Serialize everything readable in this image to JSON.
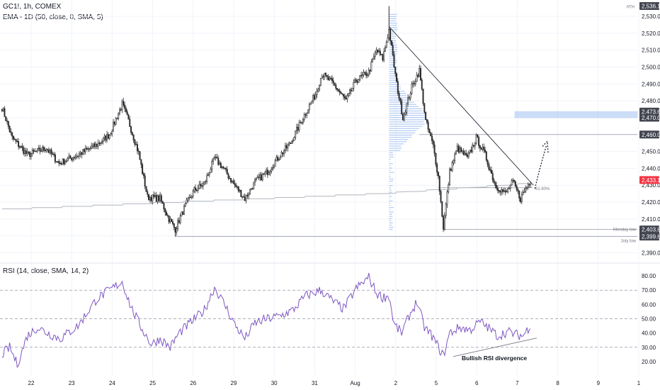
{
  "header": {
    "symbol_line": "GC1!, 1h, COMEX",
    "ema_line": "EMA - 1D (50, close, 0, SMA, 5)",
    "rsi_line": "RSI (14, close, SMA, 14, 2)"
  },
  "colors": {
    "up": "#2b2b2b",
    "down": "#2b2b2b",
    "rsi": "#7e57c2",
    "ema": "#b2b5be",
    "grid": "#f0f3fa",
    "volume_profile": "#90b4ee",
    "zone": "#90b4ee",
    "badge": "#434651",
    "price_badge": "#f23645"
  },
  "chart_data": [
    {
      "type": "candlestick",
      "name": "price",
      "ylim": [
        2386,
        2538
      ],
      "y_ticks": [
        "2,390.0",
        "2,400.0",
        "2,410.0",
        "2,420.0",
        "2,430.0",
        "2,440.0",
        "2,450.0",
        "2,460.0",
        "2,470.0",
        "2,480.0",
        "2,490.0",
        "2,500.0",
        "2,510.0",
        "2,520.0",
        "2,530.0"
      ],
      "y_tick_values": [
        2390,
        2400,
        2410,
        2420,
        2430,
        2440,
        2450,
        2460,
        2470,
        2480,
        2490,
        2500,
        2510,
        2520,
        2530
      ],
      "x_labels": [
        "22",
        "23",
        "24",
        "25",
        "26",
        "29",
        "30",
        "31",
        "Aug",
        "2",
        "5",
        "6",
        "7",
        "8",
        "9",
        "1"
      ],
      "anchors": [
        {
          "i": 0,
          "p": 2476
        },
        {
          "i": 8,
          "p": 2458
        },
        {
          "i": 20,
          "p": 2448
        },
        {
          "i": 35,
          "p": 2452
        },
        {
          "i": 45,
          "p": 2443
        },
        {
          "i": 60,
          "p": 2448
        },
        {
          "i": 75,
          "p": 2454
        },
        {
          "i": 85,
          "p": 2460
        },
        {
          "i": 95,
          "p": 2478
        },
        {
          "i": 100,
          "p": 2468
        },
        {
          "i": 108,
          "p": 2449
        },
        {
          "i": 115,
          "p": 2423
        },
        {
          "i": 125,
          "p": 2422
        },
        {
          "i": 132,
          "p": 2410
        },
        {
          "i": 137,
          "p": 2404
        },
        {
          "i": 145,
          "p": 2418
        },
        {
          "i": 152,
          "p": 2427
        },
        {
          "i": 160,
          "p": 2431
        },
        {
          "i": 168,
          "p": 2446
        },
        {
          "i": 175,
          "p": 2440
        },
        {
          "i": 182,
          "p": 2432
        },
        {
          "i": 192,
          "p": 2422
        },
        {
          "i": 200,
          "p": 2432
        },
        {
          "i": 210,
          "p": 2438
        },
        {
          "i": 218,
          "p": 2446
        },
        {
          "i": 228,
          "p": 2455
        },
        {
          "i": 238,
          "p": 2470
        },
        {
          "i": 248,
          "p": 2484
        },
        {
          "i": 253,
          "p": 2496
        },
        {
          "i": 262,
          "p": 2490
        },
        {
          "i": 272,
          "p": 2480
        },
        {
          "i": 280,
          "p": 2492
        },
        {
          "i": 290,
          "p": 2497
        },
        {
          "i": 296,
          "p": 2510
        },
        {
          "i": 301,
          "p": 2505
        },
        {
          "i": 306,
          "p": 2522
        },
        {
          "i": 312,
          "p": 2490
        },
        {
          "i": 317,
          "p": 2470
        },
        {
          "i": 324,
          "p": 2488
        },
        {
          "i": 330,
          "p": 2498
        },
        {
          "i": 335,
          "p": 2468
        },
        {
          "i": 341,
          "p": 2453
        },
        {
          "i": 345,
          "p": 2435
        },
        {
          "i": 349,
          "p": 2405
        },
        {
          "i": 354,
          "p": 2438
        },
        {
          "i": 360,
          "p": 2452
        },
        {
          "i": 368,
          "p": 2446
        },
        {
          "i": 375,
          "p": 2458
        },
        {
          "i": 382,
          "p": 2448
        },
        {
          "i": 390,
          "p": 2430
        },
        {
          "i": 398,
          "p": 2425
        },
        {
          "i": 404,
          "p": 2432
        },
        {
          "i": 410,
          "p": 2422
        },
        {
          "i": 414,
          "p": 2428
        },
        {
          "i": 418,
          "p": 2433.1
        }
      ],
      "last_price": "2,433.1",
      "price_levels": [
        {
          "label": "2,536.1",
          "value": 2536.1,
          "note": "ATH"
        },
        {
          "label": "2,473.6",
          "value": 2473.6
        },
        {
          "label": "2,470.0",
          "value": 2470.0
        },
        {
          "label": "2,460.0",
          "value": 2460.0
        },
        {
          "label": "2,403.8",
          "value": 2403.8,
          "note": "Monday low"
        },
        {
          "label": "2,399.6",
          "value": 2399.6,
          "note": "July low"
        }
      ],
      "fib_label": "61.80%",
      "annotations": {
        "ath": "ATH",
        "monday_low": "Monday low",
        "july_low": "July low"
      }
    },
    {
      "type": "line",
      "name": "RSI (14, close, SMA, 14, 2)",
      "ylim": [
        12,
        86
      ],
      "y_ticks": [
        "20.00",
        "30.00",
        "40.00",
        "50.00",
        "60.00",
        "70.00",
        "80.00"
      ],
      "y_tick_values": [
        20,
        30,
        40,
        50,
        60,
        70,
        80
      ],
      "dashed_levels": [
        70,
        50,
        30
      ],
      "anchors": [
        {
          "i": 0,
          "v": 25
        },
        {
          "i": 6,
          "v": 30
        },
        {
          "i": 12,
          "v": 18
        },
        {
          "i": 20,
          "v": 38
        },
        {
          "i": 28,
          "v": 44
        },
        {
          "i": 36,
          "v": 40
        },
        {
          "i": 46,
          "v": 36
        },
        {
          "i": 60,
          "v": 45
        },
        {
          "i": 75,
          "v": 64
        },
        {
          "i": 85,
          "v": 70
        },
        {
          "i": 95,
          "v": 76
        },
        {
          "i": 102,
          "v": 58
        },
        {
          "i": 110,
          "v": 44
        },
        {
          "i": 118,
          "v": 32
        },
        {
          "i": 125,
          "v": 36
        },
        {
          "i": 133,
          "v": 30
        },
        {
          "i": 140,
          "v": 40
        },
        {
          "i": 150,
          "v": 48
        },
        {
          "i": 160,
          "v": 56
        },
        {
          "i": 168,
          "v": 72
        },
        {
          "i": 176,
          "v": 60
        },
        {
          "i": 184,
          "v": 46
        },
        {
          "i": 192,
          "v": 36
        },
        {
          "i": 200,
          "v": 47
        },
        {
          "i": 210,
          "v": 50
        },
        {
          "i": 220,
          "v": 52
        },
        {
          "i": 230,
          "v": 56
        },
        {
          "i": 240,
          "v": 66
        },
        {
          "i": 252,
          "v": 70
        },
        {
          "i": 262,
          "v": 62
        },
        {
          "i": 270,
          "v": 57
        },
        {
          "i": 280,
          "v": 71
        },
        {
          "i": 290,
          "v": 79
        },
        {
          "i": 296,
          "v": 68
        },
        {
          "i": 301,
          "v": 65
        },
        {
          "i": 306,
          "v": 66
        },
        {
          "i": 310,
          "v": 46
        },
        {
          "i": 316,
          "v": 40
        },
        {
          "i": 322,
          "v": 52
        },
        {
          "i": 328,
          "v": 62
        },
        {
          "i": 334,
          "v": 44
        },
        {
          "i": 340,
          "v": 38
        },
        {
          "i": 345,
          "v": 30
        },
        {
          "i": 349,
          "v": 24
        },
        {
          "i": 354,
          "v": 40
        },
        {
          "i": 362,
          "v": 44
        },
        {
          "i": 370,
          "v": 42
        },
        {
          "i": 378,
          "v": 48
        },
        {
          "i": 384,
          "v": 44
        },
        {
          "i": 392,
          "v": 38
        },
        {
          "i": 400,
          "v": 41
        },
        {
          "i": 406,
          "v": 39
        },
        {
          "i": 412,
          "v": 38
        },
        {
          "i": 418,
          "v": 46
        }
      ],
      "divergence_label": "Bullish RSI divergence"
    }
  ]
}
